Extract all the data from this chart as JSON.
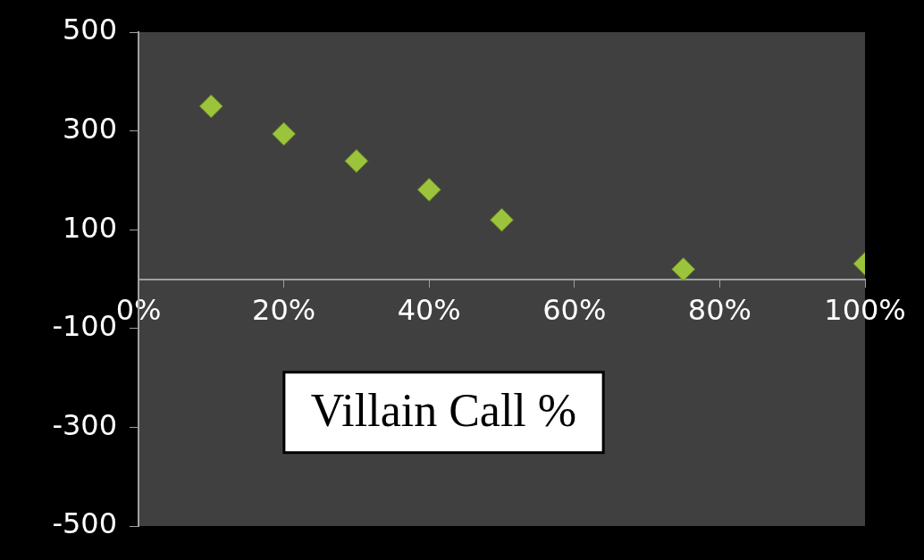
{
  "chart_data": {
    "type": "scatter",
    "xlabel": "Villain Call %",
    "x": [
      10,
      20,
      30,
      40,
      50,
      75,
      100
    ],
    "series": [
      {
        "color": "#9bc43c",
        "values": [
          350,
          294,
          239,
          181,
          120,
          20,
          31
        ]
      }
    ],
    "xlim": [
      0,
      100
    ],
    "xticks": [
      {
        "value": 0,
        "label": "0%"
      },
      {
        "value": 20,
        "label": "20%"
      },
      {
        "value": 40,
        "label": "40%"
      },
      {
        "value": 60,
        "label": "60%"
      },
      {
        "value": 80,
        "label": "80%"
      },
      {
        "value": 100,
        "label": "100%"
      }
    ],
    "ylim": [
      -500,
      500
    ],
    "yticks": [
      -500,
      -300,
      -100,
      100,
      300,
      500
    ],
    "grid": false,
    "legend": false,
    "marker": "diamond"
  }
}
